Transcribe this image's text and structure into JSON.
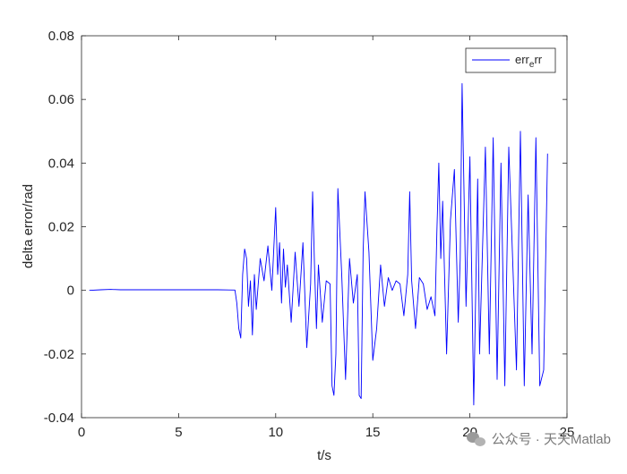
{
  "chart_data": {
    "type": "line",
    "title": "",
    "xlabel": "t/s",
    "ylabel": "delta error/rad",
    "xlim": [
      0,
      25
    ],
    "ylim": [
      -0.04,
      0.08
    ],
    "xticks": [
      0,
      5,
      10,
      15,
      20,
      25
    ],
    "xtick_labels": [
      "0",
      "5",
      "10",
      "15",
      "20",
      "25"
    ],
    "yticks": [
      -0.04,
      -0.02,
      0,
      0.02,
      0.04,
      0.06,
      0.08
    ],
    "ytick_labels": [
      "-0.04",
      "-0.02",
      "0",
      "0.02",
      "0.04",
      "0.06",
      "0.08"
    ],
    "grid": false,
    "legend_position": "top-right",
    "series": [
      {
        "name": "err_e rr",
        "legend_main": "err",
        "legend_sub": "e",
        "legend_tail": "rr",
        "color": "#0000ff",
        "x": [
          0.4,
          1.0,
          1.5,
          2.0,
          3.0,
          4.0,
          5.0,
          6.0,
          7.0,
          7.9,
          8.0,
          8.1,
          8.2,
          8.3,
          8.4,
          8.5,
          8.6,
          8.7,
          8.8,
          8.9,
          9.0,
          9.2,
          9.4,
          9.6,
          9.8,
          10.0,
          10.1,
          10.2,
          10.3,
          10.4,
          10.5,
          10.6,
          10.8,
          11.0,
          11.2,
          11.4,
          11.6,
          11.8,
          11.9,
          12.0,
          12.1,
          12.2,
          12.4,
          12.6,
          12.8,
          12.9,
          13.0,
          13.1,
          13.2,
          13.4,
          13.6,
          13.8,
          14.0,
          14.2,
          14.3,
          14.4,
          14.5,
          14.6,
          14.8,
          15.0,
          15.2,
          15.4,
          15.6,
          15.8,
          16.0,
          16.2,
          16.4,
          16.6,
          16.8,
          16.9,
          17.0,
          17.2,
          17.4,
          17.6,
          17.8,
          18.0,
          18.2,
          18.3,
          18.4,
          18.5,
          18.6,
          18.8,
          19.0,
          19.2,
          19.4,
          19.5,
          19.6,
          19.8,
          20.0,
          20.2,
          20.4,
          20.5,
          20.6,
          20.8,
          21.0,
          21.2,
          21.4,
          21.6,
          21.8,
          22.0,
          22.2,
          22.4,
          22.6,
          22.8,
          23.0,
          23.2,
          23.4,
          23.6,
          23.8,
          24.0
        ],
        "y": [
          0.0,
          0.0002,
          0.0003,
          0.0002,
          0.0002,
          0.0002,
          0.0002,
          0.0002,
          0.0002,
          0.0001,
          -0.004,
          -0.012,
          -0.015,
          0.005,
          0.013,
          0.01,
          -0.005,
          0.003,
          -0.014,
          0.005,
          -0.006,
          0.01,
          0.003,
          0.014,
          0.0,
          0.026,
          0.005,
          0.015,
          -0.004,
          0.013,
          0.001,
          0.008,
          -0.01,
          0.012,
          -0.005,
          0.015,
          -0.018,
          0.002,
          0.031,
          0.007,
          -0.012,
          0.008,
          -0.01,
          0.003,
          0.002,
          -0.03,
          -0.033,
          -0.02,
          0.032,
          0.005,
          -0.028,
          0.01,
          -0.004,
          0.005,
          -0.033,
          -0.034,
          0.012,
          0.031,
          0.012,
          -0.022,
          -0.012,
          0.008,
          -0.005,
          0.004,
          0.0,
          0.003,
          0.002,
          -0.008,
          0.005,
          0.031,
          0.003,
          -0.012,
          0.004,
          0.002,
          -0.006,
          -0.002,
          -0.008,
          0.018,
          0.04,
          0.01,
          0.028,
          -0.02,
          0.022,
          0.038,
          -0.01,
          0.01,
          0.065,
          -0.005,
          0.042,
          -0.036,
          0.035,
          -0.02,
          0.002,
          0.045,
          -0.02,
          0.048,
          -0.028,
          0.04,
          -0.03,
          0.045,
          0.01,
          -0.025,
          0.05,
          -0.03,
          0.03,
          -0.02,
          0.048,
          -0.03,
          -0.025,
          0.043
        ]
      }
    ]
  },
  "watermark": {
    "icon": "wechat-icon",
    "text": "公众号 · 天天Matlab"
  }
}
